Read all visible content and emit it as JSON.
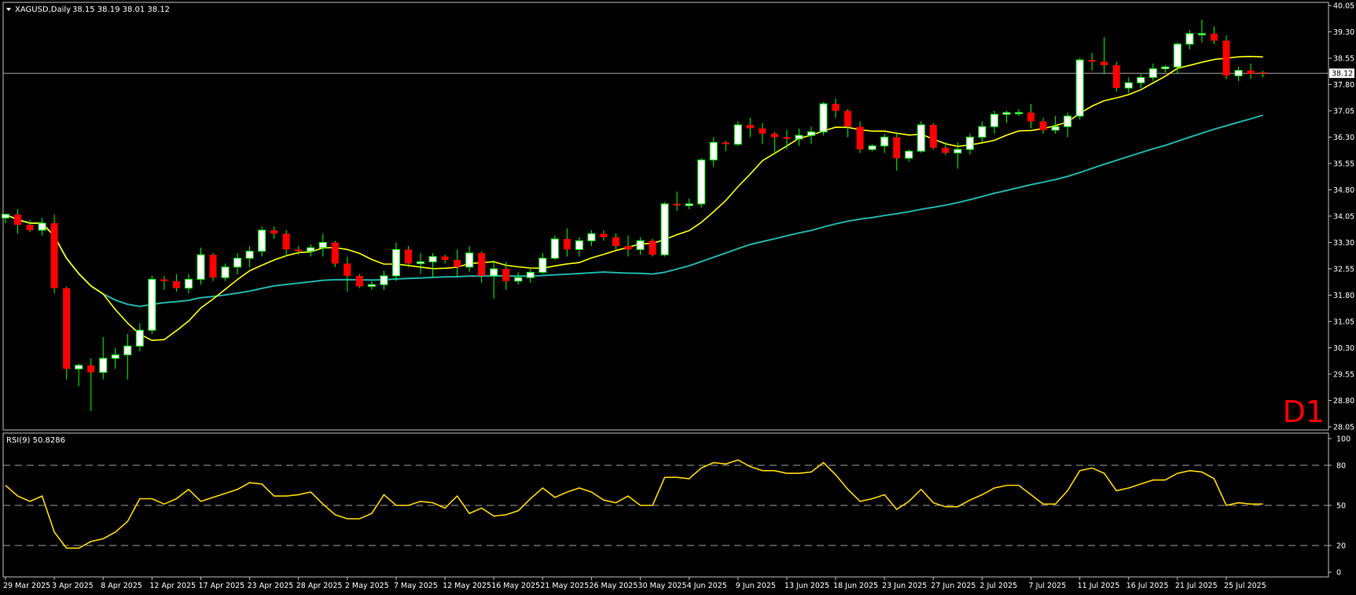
{
  "header": {
    "symbol_label": "XAGUSD,Daily",
    "ohlc_label": "38.15 38.19 38.01 38.12"
  },
  "timeframe_label": "D1",
  "colors": {
    "background": "#000000",
    "bull_candle": "#ffffff",
    "bear_candle": "#ff0000",
    "wick": "#00ff00",
    "ma_fast": "#ffff00",
    "ma_slow": "#20b2aa",
    "rsi_line": "#ffd700",
    "frame": "#c0c0c0",
    "label_text": "#ffffff",
    "timeframe_text": "#ff0000"
  },
  "chart_data": [
    {
      "type": "candlestick",
      "title": "XAGUSD,Daily",
      "ylim": [
        28.05,
        40.05
      ],
      "y_ticks": [
        "40.05",
        "39.30",
        "38.55",
        "37.80",
        "37.05",
        "36.30",
        "35.55",
        "34.80",
        "34.05",
        "33.30",
        "32.55",
        "31.80",
        "31.05",
        "30.30",
        "29.55",
        "28.80",
        "28.05"
      ],
      "current_price": "38.12",
      "x_labels": [
        {
          "i": 0,
          "label": "29 Mar 2025"
        },
        {
          "i": 4,
          "label": "3 Apr 2025"
        },
        {
          "i": 8,
          "label": "8 Apr 2025"
        },
        {
          "i": 12,
          "label": "12 Apr 2025"
        },
        {
          "i": 16,
          "label": "17 Apr 2025"
        },
        {
          "i": 20,
          "label": "23 Apr 2025"
        },
        {
          "i": 24,
          "label": "28 Apr 2025"
        },
        {
          "i": 28,
          "label": "2 May 2025"
        },
        {
          "i": 32,
          "label": "7 May 2025"
        },
        {
          "i": 36,
          "label": "12 May 2025"
        },
        {
          "i": 40,
          "label": "16 May 2025"
        },
        {
          "i": 44,
          "label": "21 May 2025"
        },
        {
          "i": 48,
          "label": "26 May 2025"
        },
        {
          "i": 52,
          "label": "30 May 2025"
        },
        {
          "i": 56,
          "label": "4 Jun 2025"
        },
        {
          "i": 60,
          "label": "9 Jun 2025"
        },
        {
          "i": 64,
          "label": "13 Jun 2025"
        },
        {
          "i": 68,
          "label": "18 Jun 2025"
        },
        {
          "i": 72,
          "label": "23 Jun 2025"
        },
        {
          "i": 76,
          "label": "27 Jun 2025"
        },
        {
          "i": 80,
          "label": "2 Jul 2025"
        },
        {
          "i": 84,
          "label": "7 Jul 2025"
        },
        {
          "i": 88,
          "label": "11 Jul 2025"
        },
        {
          "i": 92,
          "label": "16 Jul 2025"
        },
        {
          "i": 96,
          "label": "21 Jul 2025"
        },
        {
          "i": 100,
          "label": "25 Jul 2025"
        }
      ],
      "candles": [
        [
          34.0,
          34.12,
          33.85,
          34.1
        ],
        [
          34.1,
          34.25,
          33.55,
          33.8
        ],
        [
          33.8,
          33.95,
          33.6,
          33.65
        ],
        [
          33.65,
          34.0,
          33.5,
          33.85
        ],
        [
          33.85,
          34.1,
          31.85,
          32.0
        ],
        [
          32.0,
          32.05,
          29.4,
          29.7
        ],
        [
          29.7,
          29.85,
          29.2,
          29.8
        ],
        [
          29.8,
          30.0,
          28.5,
          29.6
        ],
        [
          29.6,
          30.6,
          29.4,
          30.0
        ],
        [
          30.0,
          30.3,
          29.7,
          30.1
        ],
        [
          30.1,
          30.7,
          29.4,
          30.35
        ],
        [
          30.35,
          31.0,
          30.2,
          30.8
        ],
        [
          30.8,
          32.35,
          30.7,
          32.25
        ],
        [
          32.25,
          32.35,
          31.95,
          32.2
        ],
        [
          32.2,
          32.4,
          31.9,
          32.0
        ],
        [
          32.0,
          32.4,
          31.85,
          32.25
        ],
        [
          32.25,
          33.15,
          32.1,
          32.95
        ],
        [
          32.95,
          33.0,
          32.2,
          32.3
        ],
        [
          32.3,
          32.7,
          32.2,
          32.6
        ],
        [
          32.6,
          33.0,
          32.4,
          32.85
        ],
        [
          32.85,
          33.2,
          32.6,
          33.05
        ],
        [
          33.05,
          33.75,
          32.9,
          33.65
        ],
        [
          33.65,
          33.75,
          33.4,
          33.55
        ],
        [
          33.55,
          33.65,
          32.9,
          33.1
        ],
        [
          33.1,
          33.2,
          32.95,
          33.05
        ],
        [
          33.05,
          33.25,
          32.9,
          33.15
        ],
        [
          33.15,
          33.55,
          32.9,
          33.3
        ],
        [
          33.3,
          33.35,
          32.6,
          32.7
        ],
        [
          32.7,
          32.9,
          31.9,
          32.35
        ],
        [
          32.35,
          32.4,
          32.0,
          32.05
        ],
        [
          32.05,
          32.2,
          31.95,
          32.1
        ],
        [
          32.1,
          32.5,
          31.95,
          32.35
        ],
        [
          32.35,
          33.3,
          32.2,
          33.1
        ],
        [
          33.1,
          33.2,
          32.6,
          32.7
        ],
        [
          32.7,
          33.0,
          32.4,
          32.75
        ],
        [
          32.75,
          33.0,
          32.3,
          32.9
        ],
        [
          32.9,
          32.95,
          32.7,
          32.8
        ],
        [
          32.8,
          33.1,
          32.3,
          32.6
        ],
        [
          32.6,
          33.2,
          32.45,
          33.0
        ],
        [
          33.0,
          33.05,
          32.15,
          32.35
        ],
        [
          32.35,
          32.8,
          31.7,
          32.55
        ],
        [
          32.55,
          32.75,
          31.95,
          32.2
        ],
        [
          32.2,
          32.45,
          32.1,
          32.3
        ],
        [
          32.3,
          32.55,
          32.15,
          32.45
        ],
        [
          32.45,
          33.0,
          32.4,
          32.85
        ],
        [
          32.85,
          33.5,
          32.8,
          33.4
        ],
        [
          33.4,
          33.7,
          32.9,
          33.1
        ],
        [
          33.1,
          33.45,
          32.9,
          33.35
        ],
        [
          33.35,
          33.65,
          33.2,
          33.55
        ],
        [
          33.55,
          33.65,
          33.35,
          33.45
        ],
        [
          33.45,
          33.55,
          33.1,
          33.2
        ],
        [
          33.2,
          33.5,
          32.9,
          33.1
        ],
        [
          33.1,
          33.45,
          32.95,
          33.35
        ],
        [
          33.35,
          33.4,
          32.9,
          32.95
        ],
        [
          32.95,
          34.45,
          32.9,
          34.4
        ],
        [
          34.4,
          34.75,
          34.2,
          34.35
        ],
        [
          34.35,
          34.55,
          34.25,
          34.4
        ],
        [
          34.4,
          35.7,
          34.3,
          35.65
        ],
        [
          35.65,
          36.3,
          35.45,
          36.15
        ],
        [
          36.15,
          36.2,
          35.9,
          36.1
        ],
        [
          36.1,
          36.75,
          36.05,
          36.65
        ],
        [
          36.65,
          36.85,
          36.3,
          36.55
        ],
        [
          36.55,
          36.7,
          36.1,
          36.4
        ],
        [
          36.4,
          36.45,
          35.8,
          36.3
        ],
        [
          36.3,
          36.5,
          35.95,
          36.25
        ],
        [
          36.25,
          36.55,
          36.05,
          36.35
        ],
        [
          36.35,
          36.6,
          36.1,
          36.45
        ],
        [
          36.45,
          37.3,
          36.35,
          37.25
        ],
        [
          37.25,
          37.4,
          36.85,
          37.05
        ],
        [
          37.05,
          37.1,
          36.3,
          36.6
        ],
        [
          36.6,
          36.75,
          35.85,
          35.95
        ],
        [
          35.95,
          36.1,
          35.9,
          36.05
        ],
        [
          36.05,
          36.4,
          35.85,
          36.3
        ],
        [
          36.3,
          36.4,
          35.35,
          35.7
        ],
        [
          35.7,
          35.95,
          35.6,
          35.9
        ],
        [
          35.9,
          36.75,
          35.85,
          36.65
        ],
        [
          36.65,
          36.7,
          35.95,
          36.0
        ],
        [
          36.0,
          36.15,
          35.8,
          35.85
        ],
        [
          35.85,
          36.15,
          35.4,
          35.95
        ],
        [
          35.95,
          36.4,
          35.8,
          36.3
        ],
        [
          36.3,
          36.75,
          36.15,
          36.6
        ],
        [
          36.6,
          37.05,
          36.4,
          36.95
        ],
        [
          36.95,
          37.05,
          36.7,
          37.0
        ],
        [
          37.0,
          37.1,
          36.9,
          37.0
        ],
        [
          37.0,
          37.25,
          36.55,
          36.75
        ],
        [
          36.75,
          36.85,
          36.4,
          36.5
        ],
        [
          36.5,
          36.9,
          36.4,
          36.6
        ],
        [
          36.6,
          37.0,
          36.3,
          36.9
        ],
        [
          36.9,
          38.55,
          36.8,
          38.5
        ],
        [
          38.5,
          38.7,
          38.2,
          38.45
        ],
        [
          38.45,
          39.15,
          38.1,
          38.35
        ],
        [
          38.35,
          38.45,
          37.6,
          37.7
        ],
        [
          37.7,
          38.0,
          37.55,
          37.85
        ],
        [
          37.85,
          38.1,
          37.7,
          38.0
        ],
        [
          38.0,
          38.4,
          37.9,
          38.25
        ],
        [
          38.25,
          38.35,
          38.15,
          38.3
        ],
        [
          38.3,
          39.0,
          38.1,
          38.95
        ],
        [
          38.95,
          39.35,
          38.8,
          39.25
        ],
        [
          39.25,
          39.65,
          39.0,
          39.25
        ],
        [
          39.25,
          39.45,
          38.95,
          39.05
        ],
        [
          39.05,
          39.2,
          37.95,
          38.05
        ],
        [
          38.05,
          38.3,
          37.9,
          38.2
        ],
        [
          38.2,
          38.4,
          37.95,
          38.1
        ],
        [
          38.15,
          38.19,
          38.01,
          38.12
        ]
      ]
    },
    {
      "type": "line",
      "title": "RSI(9) 50.8286",
      "ylim": [
        0,
        100
      ],
      "y_ticks": [
        100,
        80,
        50,
        20,
        0
      ],
      "levels": [
        80,
        50,
        20
      ],
      "values": [
        65,
        57,
        53,
        57,
        30,
        18,
        18,
        23,
        25,
        30,
        38,
        55,
        55,
        51,
        55,
        62,
        53,
        56,
        59,
        62,
        67,
        66,
        57,
        57,
        58,
        60,
        51,
        43,
        40,
        40,
        44,
        58,
        50,
        50,
        53,
        52,
        48,
        57,
        44,
        48,
        42,
        43,
        46,
        55,
        63,
        56,
        60,
        63,
        60,
        54,
        52,
        57,
        50,
        50,
        71,
        71,
        70,
        78,
        82,
        81,
        84,
        79,
        76,
        76,
        74,
        74,
        75,
        82,
        73,
        62,
        53,
        55,
        58,
        47,
        53,
        62,
        52,
        49,
        49,
        54,
        58,
        63,
        65,
        65,
        58,
        51,
        51,
        61,
        76,
        78,
        74,
        61,
        63,
        66,
        69,
        69,
        74,
        76,
        75,
        70,
        50,
        52,
        51,
        51
      ]
    }
  ]
}
